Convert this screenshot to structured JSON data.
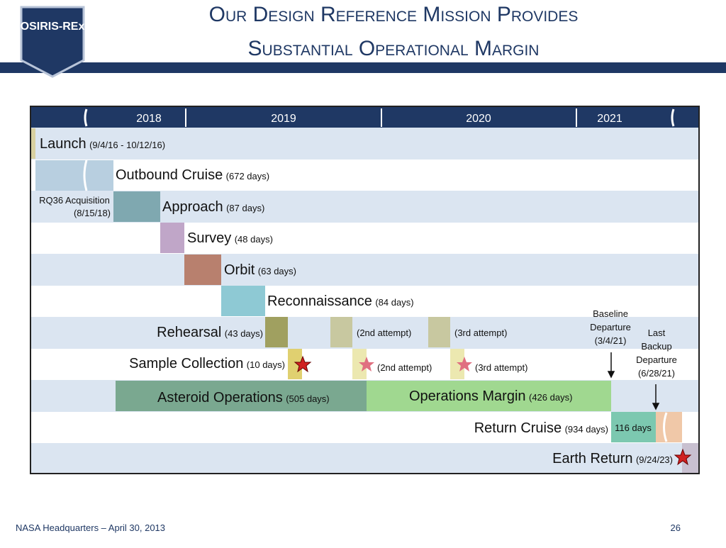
{
  "header": {
    "title_line1": "Our Design Reference Mission Provides",
    "title_line2": "Substantial Operational Margin",
    "logo": "OSIRIS-REx"
  },
  "timeline": {
    "years": [
      "2018",
      "2019",
      "2020",
      "2021"
    ],
    "launch": {
      "name": "Launch",
      "detail": "(9/4/16 - 10/12/16)"
    },
    "outbound": {
      "name": "Outbound Cruise",
      "detail": "(672 days)"
    },
    "acquisition": {
      "line1": "RQ36 Acquisition",
      "line2": "(8/15/18)"
    },
    "approach": {
      "name": "Approach",
      "detail": "(87 days)"
    },
    "survey": {
      "name": "Survey",
      "detail": "(48 days)"
    },
    "orbit": {
      "name": "Orbit",
      "detail": "(63 days)"
    },
    "recon": {
      "name": "Reconnaissance",
      "detail": "(84 days)"
    },
    "rehearsal": {
      "name": "Rehearsal",
      "detail": "(43 days)",
      "second": "(2nd attempt)",
      "third": "(3rd attempt)"
    },
    "sample": {
      "name": "Sample Collection",
      "detail": "(10 days)",
      "second": "(2nd attempt)",
      "third": "(3rd attempt)"
    },
    "asteroid_ops": {
      "name": "Asteroid Operations",
      "detail": "(505 days)"
    },
    "margin": {
      "name": "Operations Margin",
      "detail": "(426 days)"
    },
    "return_cruise": {
      "name": "Return Cruise",
      "detail": "(934 days)",
      "segment": "116 days"
    },
    "earth_return": {
      "name": "Earth Return",
      "detail": "(9/24/23)"
    },
    "baseline": {
      "line1": "Baseline",
      "line2": "Departure",
      "line3": "(3/4/21)"
    },
    "backup": {
      "line1": "Last",
      "line2": "Backup",
      "line3": "Departure",
      "line4": "(6/28/21)"
    }
  },
  "footer": {
    "left": "NASA Headquarters – April 30, 2013",
    "page": "26"
  }
}
